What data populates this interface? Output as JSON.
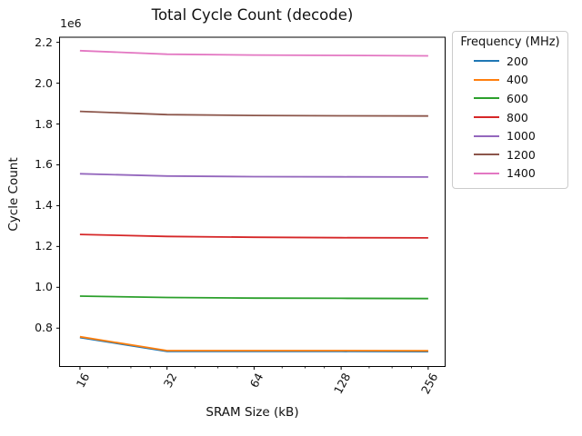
{
  "chart_data": {
    "type": "line",
    "title": "Total Cycle Count (decode)",
    "xlabel": "SRAM Size (kB)",
    "ylabel": "Cycle Count",
    "y_offset_label": "1e6",
    "xscale": "log2",
    "xlim": [
      13.6,
      293
    ],
    "ylim": [
      612000,
      2225000
    ],
    "grid": false,
    "x": [
      16,
      32,
      64,
      128,
      256
    ],
    "xticks": {
      "values": [
        16,
        32,
        64,
        128,
        256
      ],
      "labels": [
        "16",
        "32",
        "64",
        "128",
        "256"
      ]
    },
    "minor_xticks": [
      20,
      24,
      28,
      40,
      48,
      56,
      80,
      96,
      112,
      160,
      192,
      224
    ],
    "yticks": {
      "values": [
        800000,
        1000000,
        1200000,
        1400000,
        1600000,
        1800000,
        2000000,
        2200000
      ],
      "labels": [
        "0.8",
        "1.0",
        "1.2",
        "1.4",
        "1.6",
        "1.8",
        "2.0",
        "2.2"
      ]
    },
    "legend": {
      "title": "Frequency (MHz)",
      "position": "outside upper right"
    },
    "series": [
      {
        "name": "200",
        "color": "#1f77b4",
        "values": [
          754000,
          686000,
          686000,
          686000,
          685000
        ]
      },
      {
        "name": "400",
        "color": "#ff7f0e",
        "values": [
          758000,
          690000,
          690000,
          690000,
          689000
        ]
      },
      {
        "name": "600",
        "color": "#2ca02c",
        "values": [
          957000,
          950000,
          947000,
          946000,
          945000
        ]
      },
      {
        "name": "800",
        "color": "#d62728",
        "values": [
          1259000,
          1249000,
          1245000,
          1243000,
          1242000
        ]
      },
      {
        "name": "1000",
        "color": "#9467bd",
        "values": [
          1556000,
          1545000,
          1542000,
          1541000,
          1540000
        ]
      },
      {
        "name": "1200",
        "color": "#8c564b",
        "values": [
          1862000,
          1846000,
          1842000,
          1840000,
          1839000
        ]
      },
      {
        "name": "1400",
        "color": "#e377c2",
        "values": [
          2159000,
          2142000,
          2138000,
          2136000,
          2134000
        ]
      }
    ]
  }
}
